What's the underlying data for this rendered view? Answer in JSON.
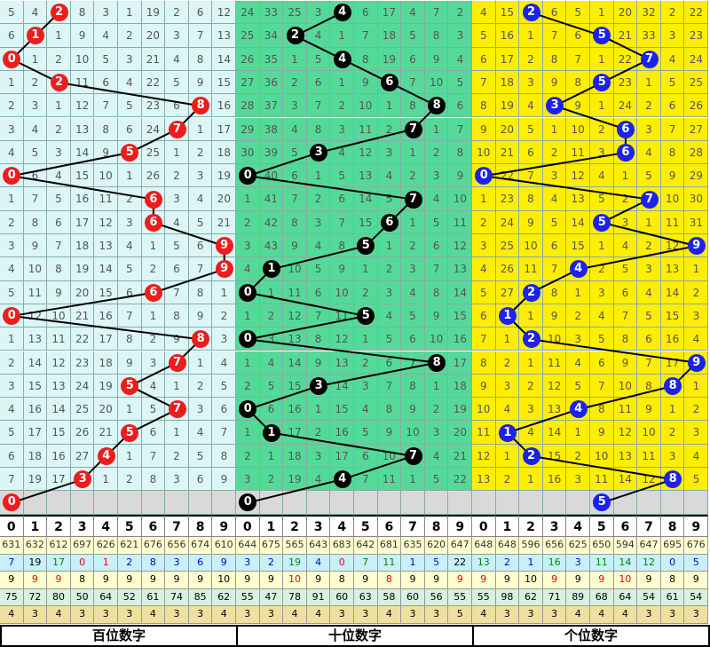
{
  "chart_data": {
    "type": "table",
    "title": "",
    "series": [
      {
        "name": "百位数字",
        "values": [
          2,
          1,
          0,
          2,
          8,
          7,
          5,
          0,
          6,
          6,
          9,
          9,
          6,
          0,
          8,
          7,
          5,
          7,
          5,
          4,
          3,
          0
        ]
      },
      {
        "name": "十位数字",
        "values": [
          4,
          2,
          4,
          6,
          8,
          7,
          3,
          0,
          7,
          6,
          5,
          1,
          0,
          5,
          0,
          8,
          3,
          0,
          1,
          7,
          4,
          0
        ]
      },
      {
        "name": "个位数字",
        "values": [
          2,
          5,
          7,
          5,
          3,
          6,
          6,
          0,
          7,
          5,
          9,
          4,
          2,
          1,
          2,
          9,
          8,
          4,
          1,
          2,
          8,
          5
        ]
      }
    ],
    "miss_rows": [
      [
        5,
        4,
        null,
        8,
        3,
        1,
        19,
        2,
        6,
        12,
        24,
        33,
        25,
        3,
        null,
        6,
        17,
        4,
        7,
        2,
        4,
        15,
        null,
        6,
        5,
        1,
        20,
        32,
        2,
        22
      ],
      [
        6,
        null,
        1,
        9,
        4,
        2,
        20,
        3,
        7,
        13,
        25,
        34,
        null,
        4,
        1,
        7,
        18,
        5,
        8,
        3,
        5,
        16,
        1,
        7,
        6,
        null,
        21,
        33,
        3,
        23
      ],
      [
        null,
        1,
        2,
        10,
        5,
        3,
        21,
        4,
        8,
        14,
        26,
        35,
        1,
        5,
        null,
        8,
        19,
        6,
        9,
        4,
        6,
        17,
        2,
        8,
        7,
        1,
        22,
        null,
        4,
        24
      ],
      [
        1,
        2,
        null,
        11,
        6,
        4,
        22,
        5,
        9,
        15,
        27,
        36,
        2,
        6,
        1,
        9,
        null,
        7,
        10,
        5,
        7,
        18,
        3,
        9,
        8,
        null,
        23,
        1,
        5,
        25
      ],
      [
        2,
        3,
        1,
        12,
        7,
        5,
        23,
        6,
        null,
        16,
        28,
        37,
        3,
        7,
        2,
        10,
        1,
        8,
        null,
        6,
        8,
        19,
        4,
        null,
        9,
        1,
        24,
        2,
        6,
        26
      ],
      [
        3,
        4,
        2,
        13,
        8,
        6,
        24,
        null,
        1,
        17,
        29,
        38,
        4,
        8,
        3,
        11,
        2,
        null,
        1,
        7,
        9,
        20,
        5,
        1,
        10,
        2,
        null,
        3,
        7,
        27
      ],
      [
        4,
        5,
        3,
        14,
        9,
        null,
        25,
        1,
        2,
        18,
        30,
        39,
        5,
        null,
        4,
        12,
        3,
        1,
        2,
        8,
        10,
        21,
        6,
        2,
        11,
        3,
        null,
        4,
        8,
        28
      ],
      [
        null,
        6,
        4,
        15,
        10,
        1,
        26,
        2,
        3,
        19,
        null,
        40,
        6,
        1,
        5,
        13,
        4,
        2,
        3,
        9,
        null,
        22,
        7,
        3,
        12,
        4,
        1,
        5,
        9,
        29
      ],
      [
        1,
        7,
        5,
        16,
        11,
        2,
        null,
        3,
        4,
        20,
        1,
        41,
        7,
        2,
        6,
        14,
        5,
        null,
        4,
        10,
        1,
        23,
        8,
        4,
        13,
        5,
        2,
        null,
        10,
        30
      ],
      [
        2,
        8,
        6,
        17,
        12,
        3,
        null,
        4,
        5,
        21,
        2,
        42,
        8,
        3,
        7,
        15,
        null,
        1,
        5,
        11,
        2,
        24,
        9,
        5,
        14,
        null,
        3,
        1,
        11,
        31
      ],
      [
        3,
        9,
        7,
        18,
        13,
        4,
        1,
        5,
        6,
        null,
        3,
        43,
        9,
        4,
        8,
        null,
        1,
        2,
        6,
        12,
        3,
        25,
        10,
        6,
        15,
        1,
        4,
        2,
        12,
        null
      ],
      [
        4,
        10,
        8,
        19,
        14,
        5,
        2,
        6,
        7,
        null,
        4,
        null,
        10,
        5,
        9,
        1,
        2,
        3,
        7,
        13,
        4,
        26,
        11,
        7,
        null,
        2,
        5,
        3,
        13,
        1
      ],
      [
        5,
        11,
        9,
        20,
        15,
        6,
        null,
        7,
        8,
        1,
        null,
        1,
        11,
        6,
        10,
        2,
        3,
        4,
        8,
        14,
        5,
        27,
        null,
        8,
        1,
        3,
        6,
        4,
        14,
        2
      ],
      [
        null,
        12,
        10,
        21,
        16,
        7,
        1,
        8,
        9,
        2,
        1,
        2,
        12,
        7,
        11,
        null,
        4,
        5,
        9,
        15,
        6,
        null,
        1,
        9,
        2,
        4,
        7,
        5,
        15,
        3
      ],
      [
        1,
        13,
        11,
        22,
        17,
        8,
        2,
        9,
        null,
        3,
        null,
        3,
        13,
        8,
        12,
        1,
        5,
        6,
        10,
        16,
        7,
        1,
        null,
        10,
        3,
        5,
        8,
        6,
        16,
        4
      ],
      [
        2,
        14,
        12,
        23,
        18,
        9,
        3,
        null,
        1,
        4,
        1,
        4,
        14,
        9,
        13,
        2,
        6,
        7,
        null,
        17,
        8,
        2,
        1,
        11,
        4,
        6,
        9,
        7,
        17,
        null
      ],
      [
        3,
        15,
        13,
        24,
        19,
        null,
        4,
        1,
        2,
        5,
        2,
        5,
        15,
        null,
        14,
        3,
        7,
        8,
        1,
        18,
        9,
        3,
        2,
        12,
        5,
        7,
        10,
        8,
        null,
        1
      ],
      [
        4,
        16,
        14,
        25,
        20,
        1,
        5,
        null,
        3,
        6,
        null,
        6,
        16,
        1,
        15,
        4,
        8,
        9,
        2,
        19,
        10,
        4,
        3,
        13,
        null,
        8,
        11,
        9,
        1,
        2
      ],
      [
        5,
        17,
        15,
        26,
        21,
        null,
        6,
        1,
        4,
        7,
        1,
        null,
        17,
        2,
        16,
        5,
        9,
        10,
        3,
        20,
        11,
        null,
        4,
        14,
        1,
        9,
        12,
        10,
        2,
        3
      ],
      [
        6,
        18,
        16,
        27,
        null,
        1,
        7,
        2,
        5,
        8,
        2,
        1,
        18,
        3,
        17,
        6,
        10,
        null,
        4,
        21,
        12,
        1,
        null,
        15,
        2,
        10,
        13,
        11,
        3,
        4
      ],
      [
        7,
        19,
        17,
        null,
        1,
        2,
        8,
        3,
        6,
        9,
        3,
        2,
        19,
        4,
        null,
        7,
        11,
        1,
        5,
        22,
        13,
        2,
        1,
        16,
        3,
        11,
        14,
        12,
        null,
        5
      ],
      [
        null,
        null,
        null,
        null,
        null,
        null,
        null,
        null,
        null,
        null,
        null,
        null,
        null,
        null,
        null,
        null,
        null,
        null,
        null,
        null,
        null,
        null,
        null,
        null,
        null,
        null,
        null,
        null,
        null,
        null
      ]
    ],
    "header_digits": [
      "0",
      "1",
      "2",
      "3",
      "4",
      "5",
      "6",
      "7",
      "8",
      "9",
      "0",
      "1",
      "2",
      "3",
      "4",
      "5",
      "6",
      "7",
      "8",
      "9",
      "0",
      "1",
      "2",
      "3",
      "4",
      "5",
      "6",
      "7",
      "8",
      "9"
    ],
    "stats": [
      {
        "name": "出现总次数",
        "bg": "#ffffd0",
        "color": "#333",
        "values": [
          631,
          632,
          612,
          697,
          626,
          621,
          676,
          656,
          674,
          610,
          644,
          675,
          565,
          643,
          683,
          642,
          681,
          635,
          620,
          647,
          648,
          648,
          596,
          656,
          625,
          650,
          594,
          647,
          695,
          676
        ]
      },
      {
        "name": "平均遗漏",
        "bg": "#c8f0f8",
        "color": "#0000cc",
        "values": [
          7,
          19,
          17,
          0,
          1,
          2,
          8,
          3,
          6,
          9,
          3,
          2,
          19,
          4,
          0,
          7,
          11,
          1,
          5,
          22,
          13,
          2,
          1,
          16,
          3,
          11,
          14,
          12,
          0,
          5
        ],
        "colors": [
          "#00c",
          "#000",
          "#080",
          "#e00",
          "#e00",
          "#00c",
          "#00c",
          "#00c",
          "#00c",
          "#00c",
          "#00c",
          "#00c",
          "#080",
          "#00c",
          "#e00",
          "#080",
          "#080",
          "#00c",
          "#00c",
          "#000",
          "#080",
          "#00c",
          "#00c",
          "#080",
          "#00c",
          "#080",
          "#080",
          "#080",
          "#00c",
          "#00c"
        ]
      },
      {
        "name": "最大遗漏",
        "bg": "#ffffd0",
        "color": "#000",
        "values": [
          9,
          9,
          9,
          8,
          9,
          9,
          9,
          9,
          9,
          10,
          9,
          9,
          10,
          9,
          8,
          9,
          8,
          9,
          9,
          9,
          9,
          9,
          10,
          9,
          9,
          9,
          10,
          9,
          8,
          9
        ],
        "colors": [
          "#000",
          "#e00",
          "#e00",
          "#000",
          "#000",
          "#000",
          "#000",
          "#000",
          "#000",
          "#000",
          "#000",
          "#000",
          "#e00",
          "#000",
          "#000",
          "#000",
          "#e00",
          "#000",
          "#000",
          "#e00",
          "#e00",
          "#000",
          "#000",
          "#e00",
          "#000",
          "#e00",
          "#e00",
          "#000",
          "#000",
          "#000"
        ]
      },
      {
        "name": "最大连出",
        "bg": "#d8f0e0",
        "color": "#000",
        "values": [
          75,
          72,
          80,
          50,
          64,
          52,
          61,
          74,
          85,
          62,
          55,
          47,
          78,
          91,
          60,
          63,
          58,
          60,
          56,
          55,
          55,
          98,
          62,
          71,
          89,
          68,
          64,
          54,
          61,
          54
        ]
      },
      {
        "name": "欲出几率",
        "bg": "#f0e0a0",
        "color": "#000",
        "values": [
          4,
          3,
          4,
          3,
          3,
          3,
          4,
          3,
          3,
          4,
          3,
          3,
          4,
          4,
          3,
          3,
          4,
          3,
          3,
          5,
          4,
          3,
          3,
          3,
          4,
          4,
          4,
          3,
          3,
          3
        ]
      }
    ]
  },
  "footer": {
    "labels": [
      "百位数字",
      "十位数字",
      "个位数字"
    ]
  }
}
